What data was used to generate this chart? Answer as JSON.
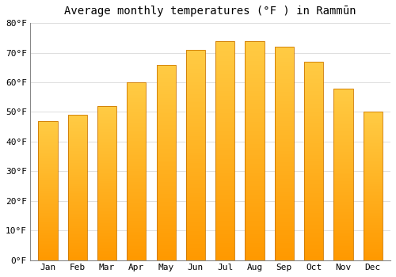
{
  "title": "Average monthly temperatures (°F ) in Rammūn",
  "months": [
    "Jan",
    "Feb",
    "Mar",
    "Apr",
    "May",
    "Jun",
    "Jul",
    "Aug",
    "Sep",
    "Oct",
    "Nov",
    "Dec"
  ],
  "values": [
    47,
    49,
    52,
    60,
    66,
    71,
    74,
    74,
    72,
    67,
    58,
    50
  ],
  "ylim": [
    0,
    80
  ],
  "yticks": [
    0,
    10,
    20,
    30,
    40,
    50,
    60,
    70,
    80
  ],
  "ytick_labels": [
    "0°F",
    "10°F",
    "20°F",
    "30°F",
    "40°F",
    "50°F",
    "60°F",
    "70°F",
    "80°F"
  ],
  "background_color": "#FFFFFF",
  "grid_color": "#DDDDDD",
  "bar_color_bottom": "#FF9900",
  "bar_color_top": "#FFCC44",
  "bar_edge_color": "#CC7700",
  "title_fontsize": 10,
  "tick_fontsize": 8,
  "bar_width": 0.65,
  "n_gradient_steps": 100
}
